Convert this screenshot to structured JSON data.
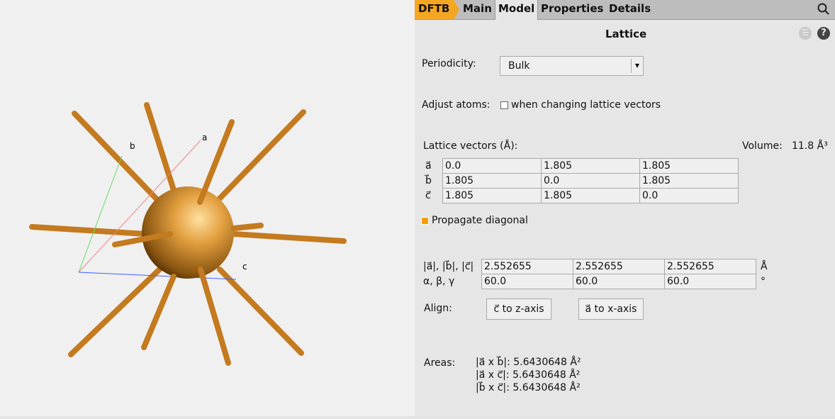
{
  "tabs": {
    "app": "DFTB",
    "items": [
      "Main",
      "Model",
      "Properties",
      "Details"
    ],
    "active": "Model"
  },
  "section_title": "Lattice",
  "periodicity": {
    "label": "Periodicity:",
    "value": "Bulk"
  },
  "adjust": {
    "label": "Adjust atoms:",
    "checkbox_label": "when changing lattice vectors",
    "checked": false
  },
  "lattice": {
    "label": "Lattice vectors (Å):",
    "volume_label": "Volume:",
    "volume": "11.8 Å³",
    "rows": [
      {
        "name": "a⃗",
        "values": [
          "0.0",
          "1.805",
          "1.805"
        ]
      },
      {
        "name": "b⃗",
        "values": [
          "1.805",
          "0.0",
          "1.805"
        ]
      },
      {
        "name": "c⃗",
        "values": [
          "1.805",
          "1.805",
          "0.0"
        ]
      }
    ]
  },
  "propagate": {
    "label": "Propagate diagonal",
    "checked": true
  },
  "params": {
    "rows": [
      {
        "name": "|a⃗|, |b⃗|, |c⃗|",
        "values": [
          "2.552655",
          "2.552655",
          "2.552655"
        ],
        "unit": "Å"
      },
      {
        "name": "α, β, γ",
        "values": [
          "60.0",
          "60.0",
          "60.0"
        ],
        "unit": "°"
      }
    ]
  },
  "align": {
    "label": "Align:",
    "c_button": "c⃗ to z-axis",
    "a_button": "a⃗ to x-axis"
  },
  "areas": {
    "label": "Areas:",
    "items": [
      "|a⃗ x b⃗|: 5.6430648 Å²",
      "|a⃗ x c⃗|: 5.6430648 Å²",
      "|b⃗ x c⃗|: 5.6430648 Å²"
    ]
  },
  "viewer": {
    "axis_labels": [
      "a",
      "b",
      "c"
    ],
    "atom_color": "#e0962e"
  },
  "accent": "#f5a623"
}
